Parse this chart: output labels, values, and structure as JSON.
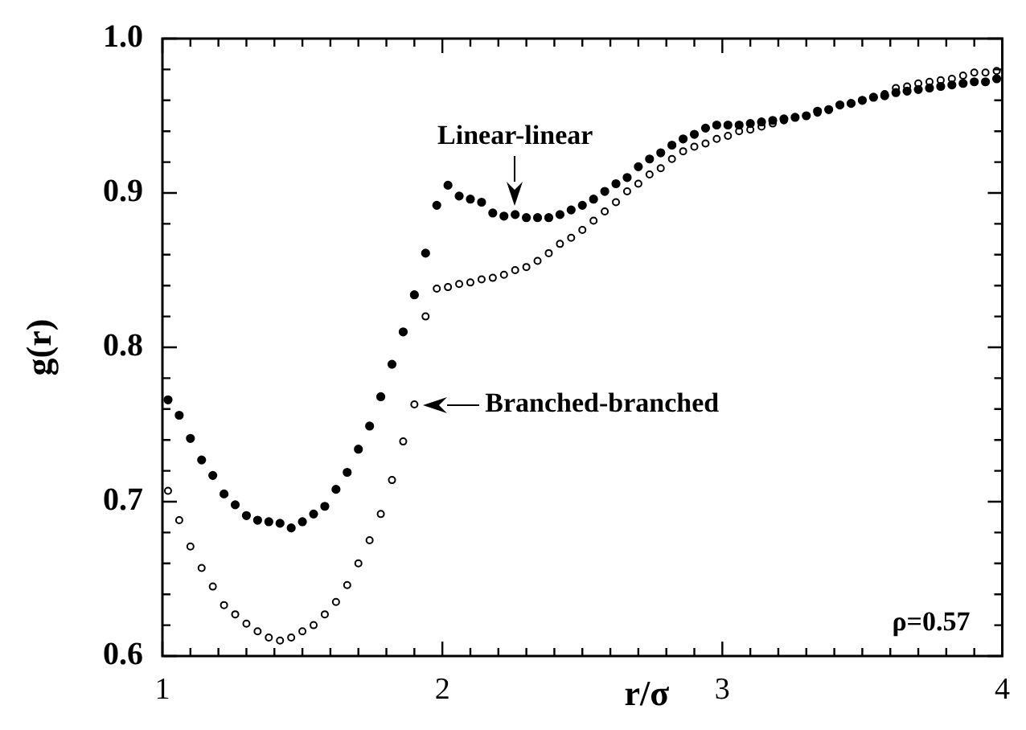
{
  "chart_data": {
    "type": "scatter",
    "xlabel": "r/σ",
    "ylabel": "g(r)",
    "x": [
      1.02,
      1.06,
      1.1,
      1.14,
      1.18,
      1.22,
      1.26,
      1.3,
      1.34,
      1.38,
      1.42,
      1.46,
      1.5,
      1.54,
      1.58,
      1.62,
      1.66,
      1.7,
      1.74,
      1.78,
      1.82,
      1.86,
      1.9,
      1.94,
      1.98,
      2.02,
      2.06,
      2.1,
      2.14,
      2.18,
      2.22,
      2.26,
      2.3,
      2.34,
      2.38,
      2.42,
      2.46,
      2.5,
      2.54,
      2.58,
      2.62,
      2.66,
      2.7,
      2.74,
      2.78,
      2.82,
      2.86,
      2.9,
      2.94,
      2.98,
      3.02,
      3.06,
      3.1,
      3.14,
      3.18,
      3.22,
      3.26,
      3.3,
      3.34,
      3.38,
      3.42,
      3.46,
      3.5,
      3.54,
      3.58,
      3.62,
      3.66,
      3.7,
      3.74,
      3.78,
      3.82,
      3.86,
      3.9,
      3.94,
      3.98
    ],
    "series": [
      {
        "color": "#000000",
        "marker": "circle",
        "values": [
          0.766,
          0.756,
          0.741,
          0.727,
          0.717,
          0.705,
          0.698,
          0.691,
          0.688,
          0.687,
          0.686,
          0.683,
          0.687,
          0.692,
          0.697,
          0.708,
          0.719,
          0.734,
          0.749,
          0.768,
          0.789,
          0.81,
          0.834,
          0.861,
          0.892,
          0.905,
          0.898,
          0.896,
          0.894,
          0.887,
          0.885,
          0.886,
          0.884,
          0.884,
          0.884,
          0.886,
          0.889,
          0.892,
          0.896,
          0.901,
          0.906,
          0.91,
          0.917,
          0.922,
          0.926,
          0.931,
          0.935,
          0.938,
          0.942,
          0.944,
          0.944,
          0.944,
          0.945,
          0.946,
          0.947,
          0.948,
          0.949,
          0.95,
          0.953,
          0.954,
          0.957,
          0.958,
          0.96,
          0.962,
          0.963,
          0.965,
          0.966,
          0.967,
          0.968,
          0.969,
          0.97,
          0.971,
          0.972,
          0.972,
          0.974
        ]
      },
      {
        "color": "#000000",
        "marker": "circle",
        "values": [
          0.707,
          0.688,
          0.671,
          0.657,
          0.645,
          0.633,
          0.627,
          0.621,
          0.616,
          0.612,
          0.61,
          0.612,
          0.616,
          0.62,
          0.627,
          0.635,
          0.646,
          0.66,
          0.675,
          0.692,
          0.714,
          0.739,
          0.763,
          0.82,
          0.838,
          0.839,
          0.841,
          0.842,
          0.844,
          0.845,
          0.847,
          0.85,
          0.852,
          0.856,
          0.861,
          0.867,
          0.871,
          0.876,
          0.882,
          0.888,
          0.894,
          0.901,
          0.906,
          0.912,
          0.916,
          0.922,
          0.927,
          0.93,
          0.932,
          0.935,
          0.937,
          0.94,
          0.941,
          0.943,
          0.945,
          0.947,
          null,
          0.95,
          0.952,
          0.954,
          0.957,
          0.958,
          0.96,
          0.962,
          0.964,
          0.968,
          0.969,
          0.971,
          0.972,
          0.973,
          0.974,
          0.976,
          0.978,
          0.978,
          0.979
        ]
      }
    ],
    "xlim": [
      1,
      4
    ],
    "ylim": [
      0.6,
      1.0
    ],
    "xticks": [
      1,
      {
        "value": 1.1,
        "label": null
      },
      {
        "value": 1.2,
        "label": null
      },
      {
        "value": 1.3,
        "label": null
      },
      {
        "value": 1.4,
        "label": null
      },
      {
        "value": 1.5,
        "label": null
      },
      {
        "value": 1.6,
        "label": null
      },
      {
        "value": 1.7,
        "label": null
      },
      {
        "value": 1.8,
        "label": null
      },
      {
        "value": 1.9,
        "label": null
      },
      2,
      {
        "value": 2.1,
        "label": null
      },
      {
        "value": 2.2,
        "label": null
      },
      {
        "value": 2.3,
        "label": null
      },
      {
        "value": 2.4,
        "label": null
      },
      {
        "value": 2.5,
        "label": null
      },
      {
        "value": 2.6,
        "label": null
      },
      {
        "value": 2.7,
        "label": null
      },
      {
        "value": 2.8,
        "label": null
      },
      {
        "value": 2.9,
        "label": null
      },
      3,
      {
        "value": 3.1,
        "label": null
      },
      {
        "value": 3.2,
        "label": null
      },
      {
        "value": 3.3,
        "label": null
      },
      {
        "value": 3.4,
        "label": null
      },
      {
        "value": 3.5,
        "label": null
      },
      {
        "value": 3.6,
        "label": null
      },
      {
        "value": 3.7,
        "label": null
      },
      {
        "value": 3.8,
        "label": null
      },
      {
        "value": 3.9,
        "label": null
      },
      4
    ],
    "yticks": [
      0.6,
      {
        "value": 0.62,
        "label": null
      },
      {
        "value": 0.64,
        "label": null
      },
      {
        "value": 0.66,
        "label": null
      },
      {
        "value": 0.68,
        "label": null
      },
      0.7,
      {
        "value": 0.72,
        "label": null
      },
      {
        "value": 0.74,
        "label": null
      },
      {
        "value": 0.76,
        "label": null
      },
      {
        "value": 0.78,
        "label": null
      },
      0.8,
      {
        "value": 0.82,
        "label": null
      },
      {
        "value": 0.84,
        "label": null
      },
      {
        "value": 0.86,
        "label": null
      },
      {
        "value": 0.88,
        "label": null
      },
      0.9,
      {
        "value": 0.92,
        "label": null
      },
      {
        "value": 0.94,
        "label": null
      },
      {
        "value": 0.96,
        "label": null
      },
      {
        "value": 0.98,
        "label": null
      },
      {
        "value": 1.0,
        "label": "1.0"
      }
    ],
    "grid": false,
    "legend": false,
    "annotations": [
      {
        "text": "Linear-linear",
        "x": 2.26,
        "y": 0.886
      },
      {
        "text": "Branched-branched",
        "x": 1.9,
        "y": 0.763
      },
      "ρ=0.57"
    ]
  }
}
